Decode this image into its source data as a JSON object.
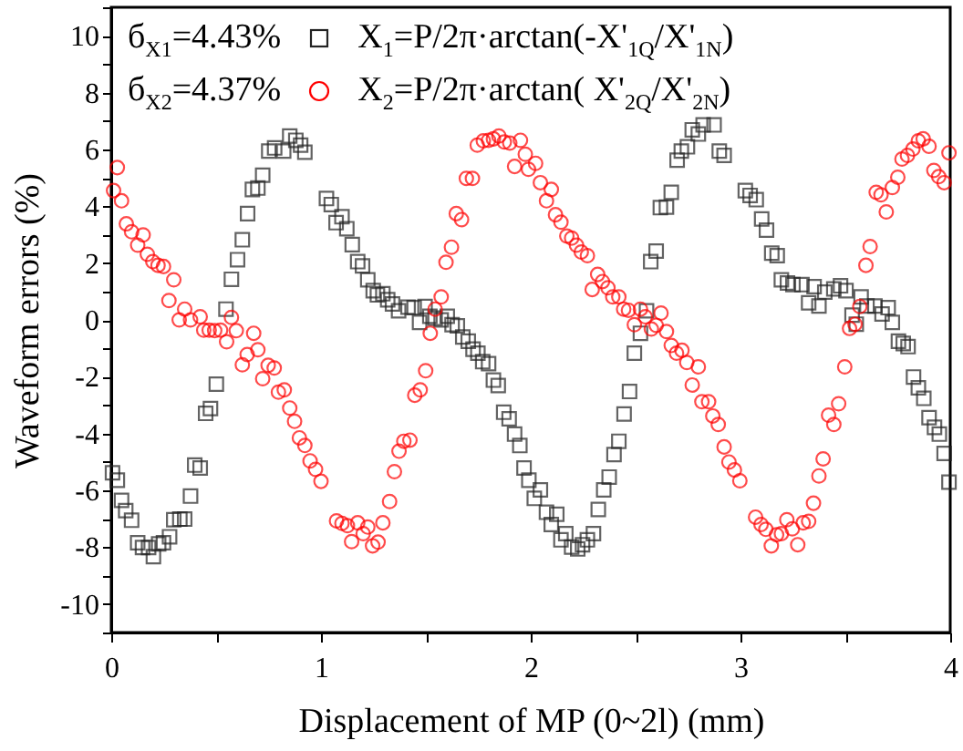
{
  "chart_data": {
    "type": "scatter",
    "xlabel": "Displacement of MP (0~2l) (mm)",
    "ylabel": "Waveform errors (%)",
    "annotations": [
      "б$_{X1}$=4.43%",
      "б$_{X2}$=4.37%"
    ],
    "xlim": [
      0,
      4
    ],
    "xticks": [
      0,
      {
        "value": 0.5,
        "label": null
      },
      1,
      {
        "value": 1.5,
        "label": null
      },
      2,
      {
        "value": 2.5,
        "label": null
      },
      3,
      {
        "value": 3.5,
        "label": null
      },
      4
    ],
    "ylim": [
      -11,
      11
    ],
    "yticks": [
      {
        "value": -11,
        "label": null
      },
      -10,
      {
        "value": -9,
        "label": null
      },
      -8,
      {
        "value": -7,
        "label": null
      },
      -6,
      {
        "value": -5,
        "label": null
      },
      -4,
      {
        "value": -3,
        "label": null
      },
      -2,
      {
        "value": -1,
        "label": null
      },
      0,
      {
        "value": 1,
        "label": null
      },
      2,
      {
        "value": 3,
        "label": null
      },
      4,
      {
        "value": 5,
        "label": null
      },
      6,
      {
        "value": 7,
        "label": null
      },
      8,
      {
        "value": 9,
        "label": null
      },
      10,
      {
        "value": 11,
        "label": null
      }
    ],
    "grid": false,
    "legend": "top left",
    "series": [
      {
        "name": "X$_{1}$=P/2π·arctan(-X'$_{1Q}$/X'$_{1N}$)",
        "color": "#222222",
        "marker": "square",
        "x": [
          0.006,
          0.029,
          0.049,
          0.069,
          0.097,
          0.126,
          0.149,
          0.178,
          0.201,
          0.226,
          0.249,
          0.278,
          0.298,
          0.327,
          0.35,
          0.378,
          0.398,
          0.424,
          0.45,
          0.473,
          0.501,
          0.547,
          0.573,
          0.602,
          0.625,
          0.65,
          0.673,
          0.699,
          0.722,
          0.751,
          0.779,
          0.822,
          0.851,
          0.88,
          0.903,
          0.923,
          1.026,
          1.049,
          1.072,
          1.1,
          1.123,
          1.149,
          1.175,
          1.198,
          1.223,
          1.249,
          1.269,
          1.295,
          1.318,
          1.341,
          1.37,
          1.415,
          1.444,
          1.47,
          1.496,
          1.519,
          1.544,
          1.573,
          1.602,
          1.625,
          1.65,
          1.676,
          1.702,
          1.725,
          1.748,
          1.771,
          1.799,
          1.822,
          1.845,
          1.871,
          1.897,
          1.923,
          1.948,
          1.968,
          1.991,
          2.017,
          2.046,
          2.075,
          2.098,
          2.124,
          2.144,
          2.167,
          2.195,
          2.224,
          2.247,
          2.27,
          2.299,
          2.322,
          2.348,
          2.374,
          2.397,
          2.42,
          2.445,
          2.471,
          2.494,
          2.523,
          2.552,
          2.572,
          2.598,
          2.618,
          2.647,
          2.67,
          2.698,
          2.718,
          2.747,
          2.77,
          2.799,
          2.822,
          2.874,
          2.899,
          2.922,
          3.023,
          3.046,
          3.075,
          3.101,
          3.124,
          3.149,
          3.175,
          3.195,
          3.224,
          3.25,
          3.293,
          3.325,
          3.351,
          3.374,
          3.402,
          3.445,
          3.477,
          3.503,
          3.532,
          3.552,
          3.575,
          3.603,
          3.641,
          3.675,
          3.704,
          3.724,
          3.753,
          3.776,
          3.799,
          3.825,
          3.848,
          3.874,
          3.899,
          3.925,
          3.948,
          3.971,
          3.994
        ],
        "values": [
          -5.38,
          -5.64,
          -6.35,
          -6.71,
          -7.05,
          -7.84,
          -8.01,
          -8.01,
          -8.33,
          -7.88,
          -7.84,
          -7.63,
          -7.03,
          -7.01,
          -7.01,
          -6.2,
          -5.11,
          -5.21,
          -3.29,
          -3.12,
          -2.26,
          0.38,
          1.43,
          2.12,
          2.82,
          3.74,
          4.59,
          4.64,
          5.09,
          5.94,
          6.05,
          5.94,
          6.47,
          6.32,
          6.15,
          5.9,
          4.27,
          4.06,
          3.42,
          3.63,
          3.21,
          2.65,
          2.05,
          1.9,
          1.41,
          1.03,
          0.88,
          0.92,
          0.71,
          0.56,
          0.32,
          0.45,
          0.43,
          -0.09,
          0.47,
          0.13,
          0.06,
          0,
          0.13,
          -0.17,
          -0.21,
          -0.6,
          -0.75,
          -1.03,
          -1.17,
          -1.47,
          -1.54,
          -2.12,
          -2.31,
          -3.25,
          -3.48,
          -4.02,
          -4.42,
          -5.21,
          -5.64,
          -6.28,
          -5.98,
          -6.77,
          -7.2,
          -6.84,
          -7.74,
          -7.52,
          -7.99,
          -8.06,
          -7.91,
          -7.74,
          -7.52,
          -6.67,
          -5.98,
          -5.53,
          -4.74,
          -4.27,
          -3.31,
          -2.52,
          -1.17,
          -0.47,
          0.32,
          2.05,
          2.42,
          3.95,
          3.97,
          4.49,
          5.62,
          5.94,
          6.09,
          6.69,
          6.54,
          6.86,
          6.86,
          5.94,
          5.79,
          4.55,
          4.38,
          4.23,
          3.55,
          3.16,
          2.35,
          2.26,
          1.41,
          1.3,
          1.24,
          1.24,
          0.6,
          1.17,
          0.49,
          0.98,
          1.09,
          1.2,
          1.03,
          0.17,
          -0.15,
          0.81,
          0.49,
          0.49,
          0.21,
          0.43,
          -0.09,
          -0.75,
          -0.83,
          -0.94,
          -2.01,
          -2.39,
          -2.76,
          -3.44,
          -3.78,
          -4.02,
          -4.7,
          -5.71
        ]
      },
      {
        "name": "X$_{2}$=P/2π·arctan( X'$_{2Q}$/X'$_{2N}$)",
        "color": "#ff0000",
        "marker": "circle",
        "x": [
          0.011,
          0.029,
          0.049,
          0.072,
          0.097,
          0.126,
          0.152,
          0.172,
          0.198,
          0.223,
          0.249,
          0.275,
          0.298,
          0.324,
          0.35,
          0.378,
          0.424,
          0.441,
          0.467,
          0.493,
          0.521,
          0.55,
          0.573,
          0.596,
          0.625,
          0.648,
          0.679,
          0.699,
          0.722,
          0.748,
          0.777,
          0.797,
          0.825,
          0.851,
          0.874,
          0.897,
          0.923,
          0.948,
          0.974,
          1.0,
          1.074,
          1.1,
          1.126,
          1.146,
          1.175,
          1.201,
          1.223,
          1.246,
          1.272,
          1.295,
          1.327,
          1.35,
          1.372,
          1.395,
          1.424,
          1.447,
          1.473,
          1.499,
          1.521,
          1.544,
          1.573,
          1.596,
          1.622,
          1.645,
          1.67,
          1.693,
          1.722,
          1.745,
          1.774,
          1.799,
          1.822,
          1.848,
          1.874,
          1.9,
          1.923,
          1.951,
          1.974,
          1.989,
          2.023,
          2.046,
          2.075,
          2.098,
          2.118,
          2.144,
          2.172,
          2.195,
          2.218,
          2.241,
          2.27,
          2.293,
          2.319,
          2.342,
          2.368,
          2.391,
          2.42,
          2.443,
          2.466,
          2.494,
          2.523,
          2.546,
          2.575,
          2.598,
          2.621,
          2.647,
          2.67,
          2.695,
          2.721,
          2.744,
          2.77,
          2.799,
          2.816,
          2.848,
          2.868,
          2.894,
          2.922,
          2.945,
          2.971,
          2.997,
          3.072,
          3.098,
          3.121,
          3.147,
          3.172,
          3.195,
          3.221,
          3.247,
          3.273,
          3.299,
          3.325,
          3.348,
          3.374,
          3.394,
          3.42,
          3.445,
          3.468,
          3.497,
          3.52,
          3.546,
          3.569,
          3.598,
          3.618,
          3.647,
          3.67,
          3.695,
          3.724,
          3.75,
          3.77,
          3.796,
          3.822,
          3.848,
          3.871,
          3.899,
          3.922,
          3.945,
          3.971,
          3.994
        ],
        "values": [
          4.55,
          5.36,
          4.19,
          3.38,
          3.1,
          2.63,
          2.99,
          2.31,
          2.05,
          1.92,
          1.88,
          0.68,
          1.41,
          0,
          0.38,
          0,
          0.11,
          -0.36,
          -0.36,
          -0.38,
          -0.36,
          -0.77,
          0.09,
          -0.38,
          -1.58,
          -1.22,
          -0.47,
          -1.05,
          -2.07,
          -1.6,
          -1.69,
          -2.54,
          -2.46,
          -3.1,
          -3.57,
          -4.15,
          -4.42,
          -4.96,
          -5.26,
          -5.68,
          -7.07,
          -7.16,
          -7.24,
          -7.8,
          -7.14,
          -7.52,
          -7.29,
          -7.95,
          -7.82,
          -7.14,
          -6.39,
          -5.34,
          -4.62,
          -4.27,
          -4.23,
          -2.65,
          -2.46,
          -1.79,
          -0.47,
          0.38,
          0.81,
          2.03,
          2.56,
          3.74,
          3.53,
          4.98,
          4.98,
          6.15,
          6.3,
          6.32,
          6.37,
          6.47,
          6.26,
          6.22,
          5.4,
          6.32,
          5.83,
          5.3,
          5.51,
          4.83,
          4.19,
          4.59,
          3.7,
          3.44,
          2.95,
          2.88,
          2.63,
          2.39,
          2.26,
          1.07,
          1.6,
          1.35,
          1.13,
          0.81,
          0.81,
          0.38,
          0.34,
          -0.17,
          0.38,
          0.11,
          -0.32,
          -0.19,
          0.24,
          -0.41,
          -0.9,
          -1.17,
          -1.07,
          -1.5,
          -2.29,
          -1.65,
          -2.88,
          -2.88,
          -3.38,
          -3.68,
          -4.47,
          -5.0,
          -5.28,
          -5.66,
          -6.94,
          -7.2,
          -7.37,
          -7.95,
          -7.56,
          -7.52,
          -7.03,
          -7.35,
          -7.91,
          -7.14,
          -7.09,
          -6.45,
          -5.49,
          -4.89,
          -3.35,
          -3.68,
          -2.95,
          -1.65,
          -0.3,
          -0.15,
          0.47,
          1.92,
          2.58,
          4.49,
          4.4,
          3.8,
          4.66,
          5.02,
          5.66,
          5.79,
          6.01,
          6.3,
          6.37,
          6.11,
          5.26,
          5.04,
          4.83,
          5.88
        ]
      }
    ]
  }
}
